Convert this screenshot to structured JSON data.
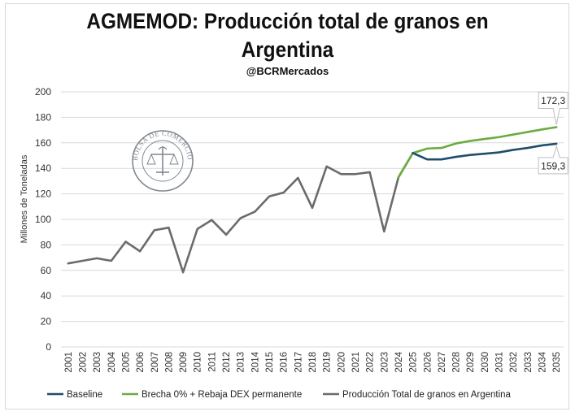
{
  "chart_data": {
    "type": "line",
    "title_line1": "AGMEMOD: Producción total de granos en",
    "title_line2": "Argentina",
    "subtitle": "@BCRMercados",
    "ylabel": "Millones de Toneladas",
    "ylim": [
      0,
      200
    ],
    "yticks": [
      0,
      20,
      40,
      60,
      80,
      100,
      120,
      140,
      160,
      180,
      200
    ],
    "x": [
      "2001",
      "2002",
      "2003",
      "2004",
      "2005",
      "2006",
      "2007",
      "2008",
      "2009",
      "2010",
      "2011",
      "2012",
      "2013",
      "2014",
      "2015",
      "2016",
      "2017",
      "2018",
      "2019",
      "2020",
      "2021",
      "2022",
      "2023",
      "2024",
      "2025",
      "2026",
      "2027",
      "2028",
      "2029",
      "2030",
      "2031",
      "2032",
      "2033",
      "2034",
      "2035"
    ],
    "grid": true,
    "legend_position": "bottom",
    "watermark_text": "BOLSA DE COMERCIO DE ROSARIO",
    "series": [
      {
        "name": "Baseline",
        "color": "#1f4e6b",
        "values": [
          null,
          null,
          null,
          null,
          null,
          null,
          null,
          null,
          null,
          null,
          null,
          null,
          null,
          null,
          null,
          null,
          null,
          null,
          null,
          null,
          null,
          null,
          null,
          null,
          152,
          147,
          147,
          149,
          150.5,
          151.5,
          152.5,
          154.5,
          156,
          158,
          159.3
        ]
      },
      {
        "name": "Brecha 0% + Rebaja DEX permanente",
        "color": "#6aac3f",
        "values": [
          null,
          null,
          null,
          null,
          null,
          null,
          null,
          null,
          null,
          null,
          null,
          null,
          null,
          null,
          null,
          null,
          null,
          null,
          null,
          null,
          null,
          null,
          null,
          133,
          152,
          155.5,
          156,
          159.5,
          161.5,
          163,
          164.5,
          166.5,
          168.5,
          170.5,
          172.3
        ]
      },
      {
        "name": "Producción Total de granos en Argentina",
        "color": "#6b6b6b",
        "values": [
          65.5,
          67.5,
          69.5,
          67.5,
          82.5,
          75,
          91.5,
          93.5,
          58.5,
          92.5,
          99.5,
          88,
          101,
          106,
          118,
          121,
          132.5,
          109,
          141.5,
          135.5,
          135.5,
          137,
          90.5,
          133,
          152,
          null,
          null,
          null,
          null,
          null,
          null,
          null,
          null,
          null,
          null
        ]
      }
    ],
    "annotations": [
      {
        "text": "172,3",
        "x": "2035",
        "series": "Brecha 0% + Rebaja DEX permanente"
      },
      {
        "text": "159,3",
        "x": "2035",
        "series": "Baseline"
      }
    ],
    "colors": {
      "grid": "#d9d9d9",
      "callout_border": "#bfbfbf",
      "watermark": "#7f8891"
    }
  }
}
